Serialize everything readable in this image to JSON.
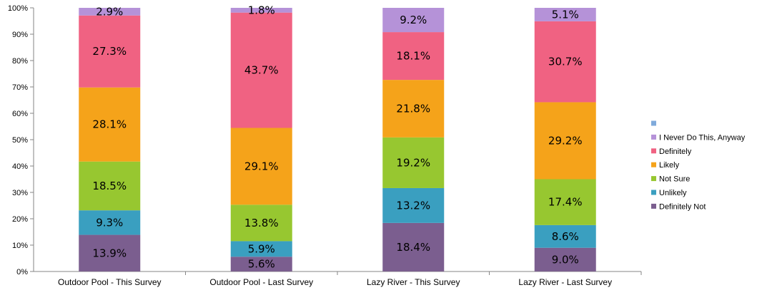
{
  "chart_data": {
    "type": "bar",
    "stacked": true,
    "normalized": true,
    "categories": [
      "Outdoor Pool - This Survey",
      "Outdoor Pool - Last Survey",
      "Lazy River - This Survey",
      "Lazy River - Last Survey"
    ],
    "series": [
      {
        "name": "Definitely Not",
        "color": "#7b5e8f",
        "values": [
          13.9,
          5.6,
          18.4,
          9.0
        ],
        "labels": [
          "13.9%",
          "5.6%",
          "18.4%",
          "9.0%"
        ]
      },
      {
        "name": "Unlikely",
        "color": "#3a9fc0",
        "values": [
          9.3,
          5.9,
          13.2,
          8.6
        ],
        "labels": [
          "9.3%",
          "5.9%",
          "13.2%",
          "8.6%"
        ]
      },
      {
        "name": "Not Sure",
        "color": "#97c730",
        "values": [
          18.5,
          13.8,
          19.2,
          17.4
        ],
        "labels": [
          "18.5%",
          "13.8%",
          "19.2%",
          "17.4%"
        ]
      },
      {
        "name": "Likely",
        "color": "#f5a31a",
        "values": [
          28.1,
          29.1,
          21.8,
          29.2
        ],
        "labels": [
          "28.1%",
          "29.1%",
          "21.8%",
          "29.2%"
        ]
      },
      {
        "name": "Definitely",
        "color": "#f06282",
        "values": [
          27.3,
          43.7,
          18.1,
          30.7
        ],
        "labels": [
          "27.3%",
          "43.7%",
          "18.1%",
          "30.7%"
        ]
      },
      {
        "name": "I Never Do This, Anyway",
        "color": "#b592d8",
        "values": [
          2.9,
          1.8,
          9.2,
          5.1
        ],
        "labels": [
          "2.9%",
          "1.8%",
          "9.2%",
          "5.1%"
        ]
      },
      {
        "name": "",
        "color": "#7faadb",
        "values": [
          0,
          0,
          0,
          0
        ],
        "labels": [
          "",
          "",
          "",
          ""
        ]
      }
    ],
    "y_ticks": [
      "0%",
      "10%",
      "20%",
      "30%",
      "40%",
      "50%",
      "60%",
      "70%",
      "80%",
      "90%",
      "100%"
    ],
    "ylim": [
      0,
      100
    ],
    "title": "",
    "xlabel": "",
    "ylabel": "",
    "legend_position": "right",
    "grid": false
  }
}
